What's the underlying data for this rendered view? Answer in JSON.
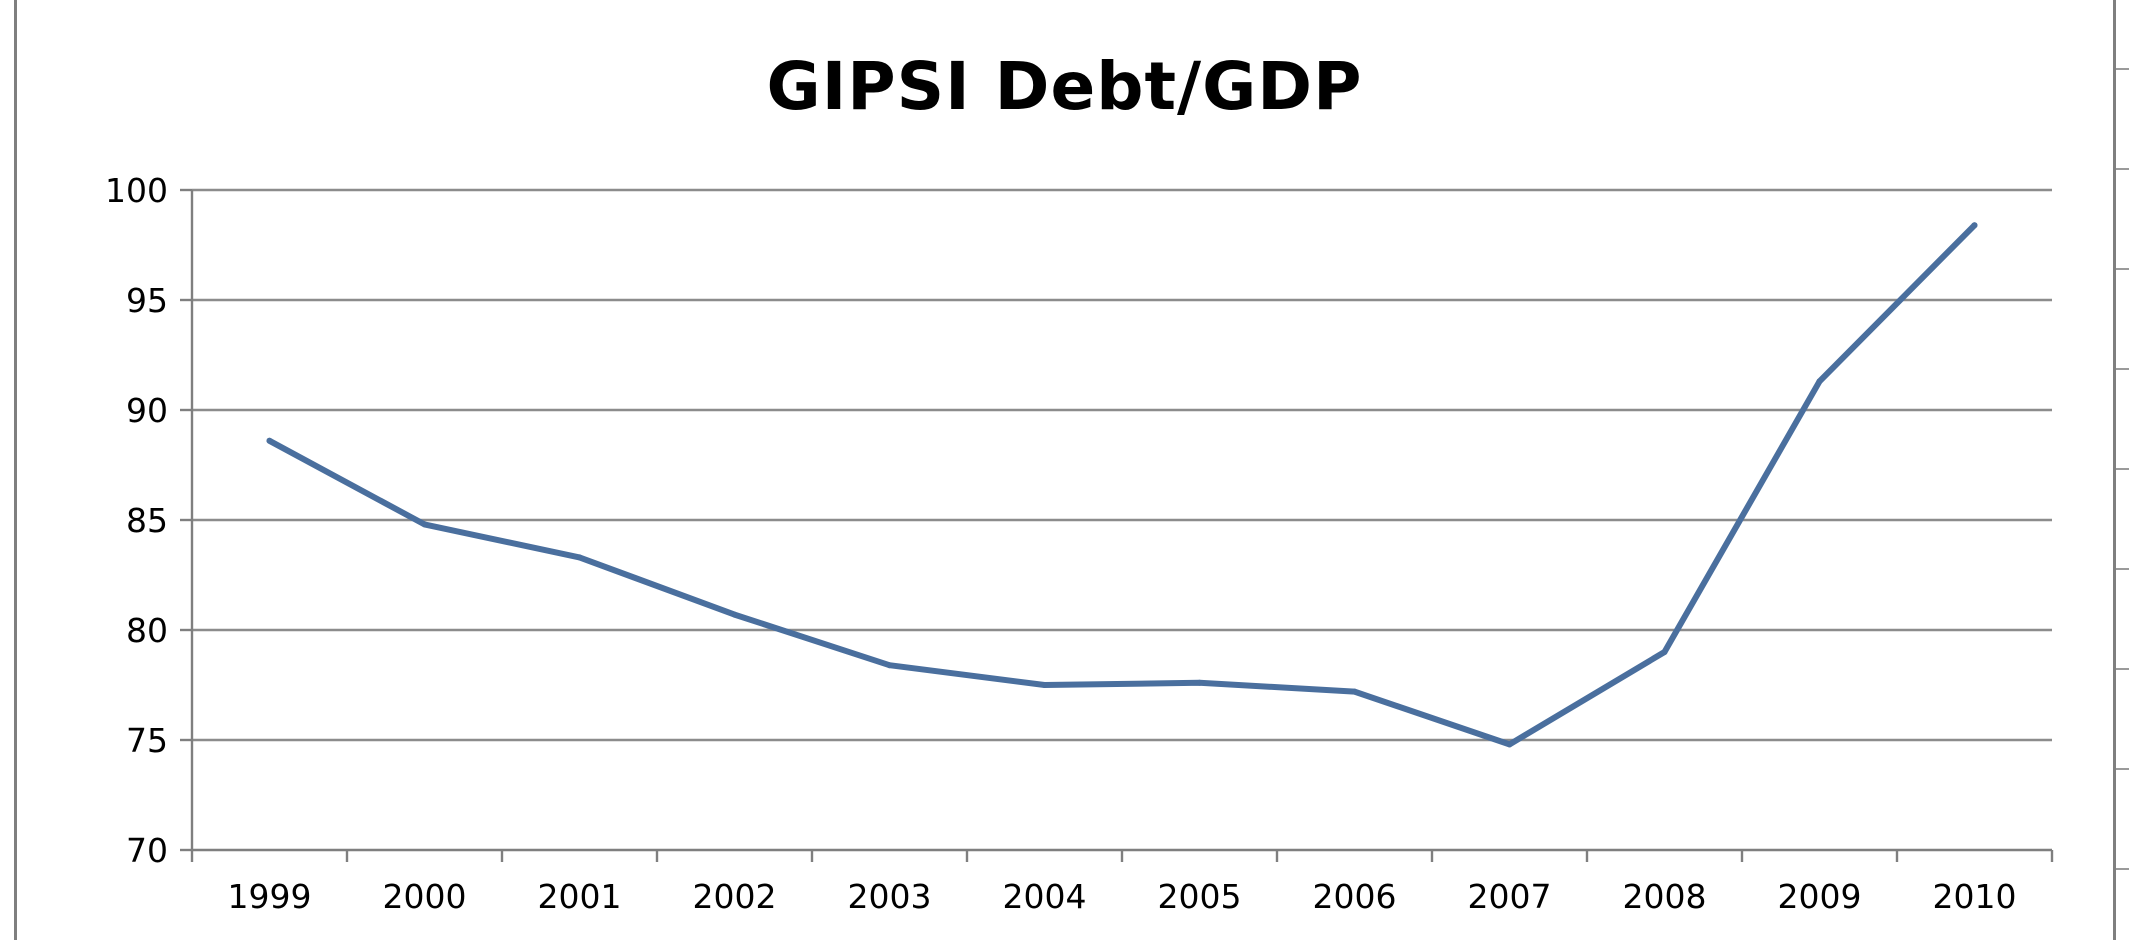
{
  "chart_data": {
    "type": "line",
    "title": "GIPSI Debt/GDP",
    "xlabel": "",
    "ylabel": "",
    "categories": [
      "1999",
      "2000",
      "2001",
      "2002",
      "2003",
      "2004",
      "2005",
      "2006",
      "2007",
      "2008",
      "2009",
      "2010"
    ],
    "series": [
      {
        "values": [
          88.6,
          84.8,
          83.3,
          80.7,
          78.4,
          77.5,
          77.6,
          77.2,
          74.8,
          79.0,
          91.3,
          98.4
        ],
        "color": "#4a6f9e"
      }
    ],
    "ylim": [
      70,
      100
    ],
    "y_ticks": [
      "70",
      "75",
      "80",
      "85",
      "90",
      "95",
      "100"
    ],
    "grid": true,
    "legend": "none",
    "colors": {
      "gridline": "#8c8c8c",
      "axis": "#7f7f7f",
      "text": "#000000",
      "background": "#ffffff"
    }
  }
}
